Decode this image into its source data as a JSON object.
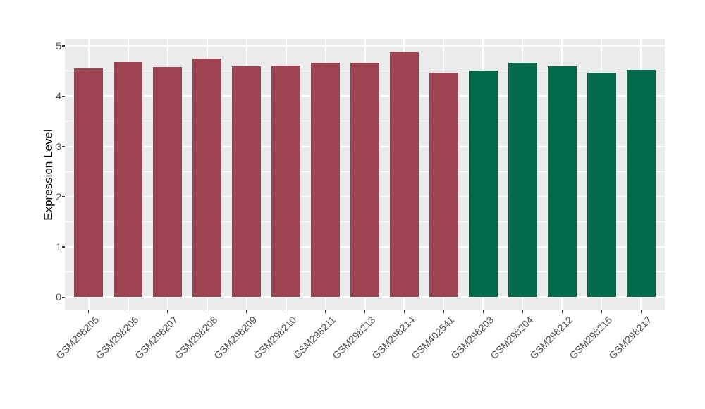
{
  "chart_data": {
    "type": "bar",
    "title": "",
    "xlabel": "",
    "ylabel": "Expression Level",
    "ylim": [
      0,
      5.13
    ],
    "yticks": [
      0,
      1,
      2,
      3,
      4,
      5
    ],
    "grid": true,
    "legend": "none",
    "categories": [
      "GSM298205",
      "GSM298206",
      "GSM298207",
      "GSM298208",
      "GSM298209",
      "GSM298210",
      "GSM298211",
      "GSM298213",
      "GSM298214",
      "GSM402541",
      "GSM298203",
      "GSM298204",
      "GSM298212",
      "GSM298215",
      "GSM298217"
    ],
    "values": [
      4.55,
      4.68,
      4.58,
      4.75,
      4.6,
      4.61,
      4.66,
      4.66,
      4.87,
      4.47,
      4.51,
      4.66,
      4.6,
      4.46,
      4.52
    ],
    "bar_group_colors": [
      "#9E4352",
      "#9E4352",
      "#9E4352",
      "#9E4352",
      "#9E4352",
      "#9E4352",
      "#9E4352",
      "#9E4352",
      "#9E4352",
      "#9E4352",
      "#026A4A",
      "#026A4A",
      "#026A4A",
      "#026A4A",
      "#026A4A"
    ],
    "colors": {
      "group1_bar": "#9E4352",
      "group2_bar": "#026A4A",
      "panel_background": "#EBEBEB",
      "gridline": "#FFFFFF",
      "axis_text": "#4D4D4D",
      "tick_mark": "#333333"
    },
    "x_tick_rotation_deg": 45
  }
}
